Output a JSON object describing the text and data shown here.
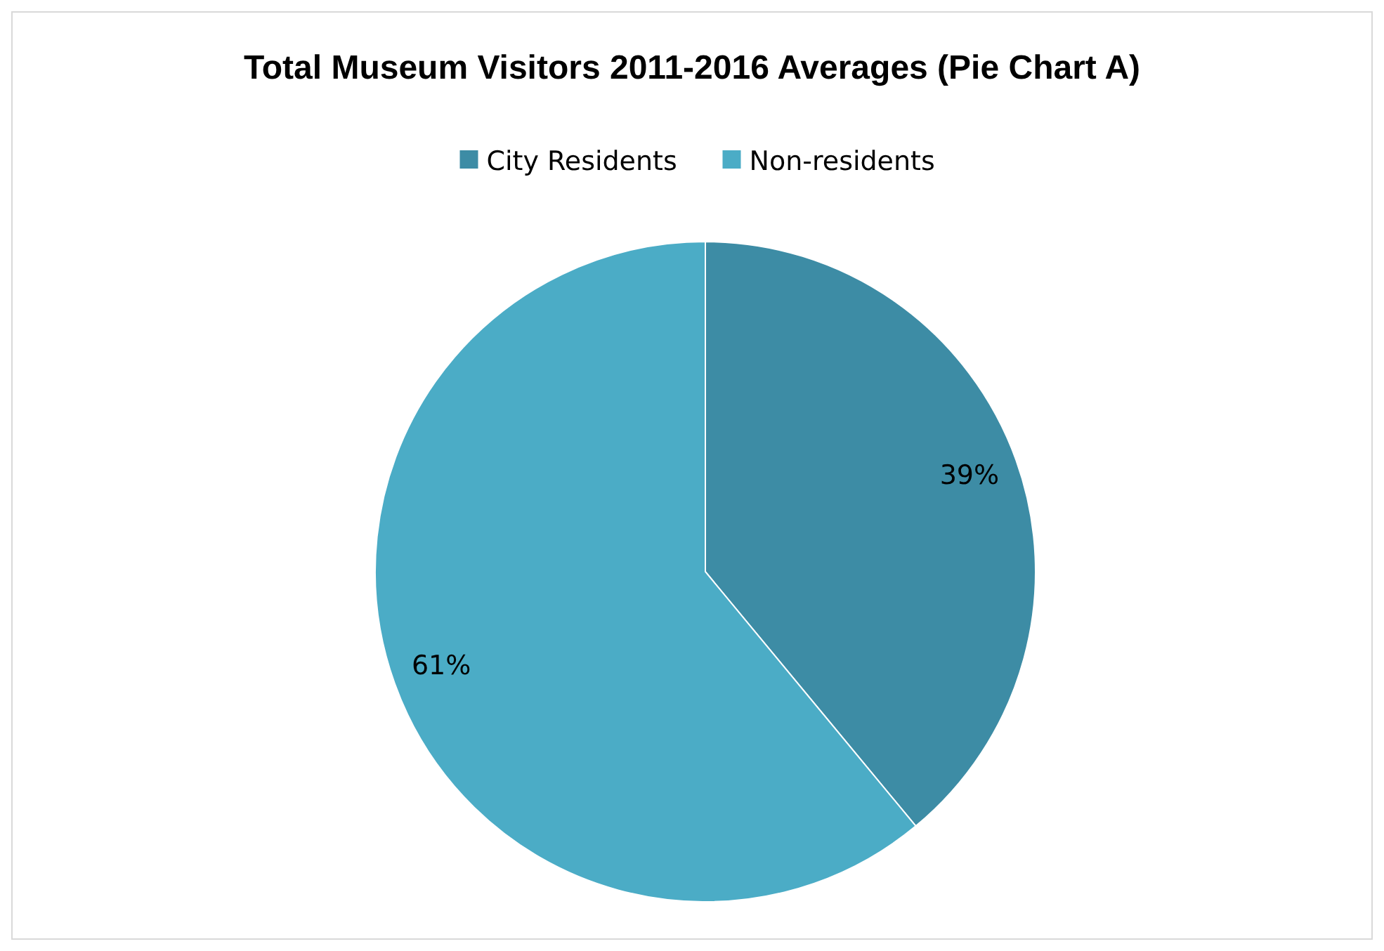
{
  "chart_data": {
    "type": "pie",
    "title": "Total Museum Visitors 2011-2016 Averages (Pie Chart A)",
    "categories": [
      "City Residents",
      "Non-residents"
    ],
    "values": [
      39,
      61
    ],
    "colors": [
      "#3d8ca5",
      "#4bacc6"
    ],
    "value_labels": [
      "39%",
      "61%"
    ],
    "legend": "top"
  }
}
